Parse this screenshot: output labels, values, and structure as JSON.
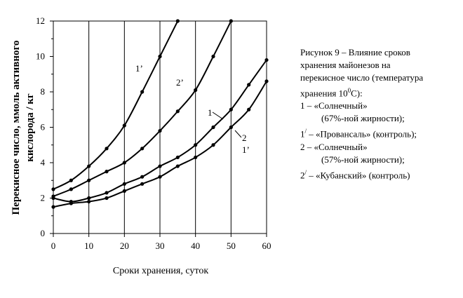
{
  "chart_data": {
    "type": "line",
    "xlabel": "Сроки хранения, суток",
    "ylabel_line1": "Перекисное число, ммоль активного",
    "ylabel_line2": "кислорода / кг",
    "xlim": [
      0,
      60
    ],
    "ylim": [
      0,
      12
    ],
    "x_ticks": [
      0,
      10,
      20,
      30,
      40,
      50,
      60
    ],
    "y_ticks": [
      0,
      2,
      4,
      6,
      8,
      10,
      12
    ],
    "grid": "vertical",
    "series": [
      {
        "name": "1'",
        "x": [
          0,
          5,
          10,
          15,
          20,
          25,
          30,
          35
        ],
        "y": [
          2.5,
          3.0,
          3.8,
          4.8,
          6.1,
          8.0,
          10.0,
          12.0
        ]
      },
      {
        "name": "2'",
        "x": [
          0,
          5,
          10,
          15,
          20,
          25,
          30,
          35,
          40,
          45,
          50
        ],
        "y": [
          2.1,
          2.5,
          3.0,
          3.5,
          4.0,
          4.8,
          5.8,
          6.9,
          8.1,
          10.0,
          12.0
        ]
      },
      {
        "name": "1",
        "x": [
          0,
          5,
          10,
          15,
          20,
          25,
          30,
          35,
          40,
          45,
          50,
          55,
          60
        ],
        "y": [
          2.0,
          1.8,
          2.0,
          2.3,
          2.8,
          3.2,
          3.8,
          4.3,
          5.0,
          6.0,
          7.0,
          8.4,
          9.8
        ]
      },
      {
        "name": "2",
        "x": [
          0,
          5,
          10,
          15,
          20,
          25,
          30,
          35,
          40,
          45,
          50,
          55,
          60
        ],
        "y": [
          1.5,
          1.7,
          1.8,
          2.0,
          2.4,
          2.8,
          3.2,
          3.8,
          4.3,
          5.0,
          6.0,
          7.0,
          8.6
        ]
      }
    ]
  },
  "caption": {
    "line1": "Рисунок 9 – Влияние сроков",
    "line2": "хранения майонезов на",
    "line3": "перекисное число (температура",
    "line4_a": "хранения 10",
    "line4_sup": "0",
    "line4_b": "С):",
    "item1": "1 – «Солнечный»",
    "item1_note": "(67%-ной жирности);",
    "item1p_num": "1",
    "item1p_prime": "/",
    "item1p_text": " – «Провансаль» (контроль);",
    "item2": "2 – «Солнечный»",
    "item2_note": "(57%-ной жирности);",
    "item2p_num": "2",
    "item2p_prime": "/",
    "item2p_text": " – «Кубанский» (контроль)"
  },
  "curve_labels": {
    "s1p": "1’",
    "s2p": "2’",
    "s1": "1",
    "s2": "2",
    "s1p_lower": "1’"
  }
}
